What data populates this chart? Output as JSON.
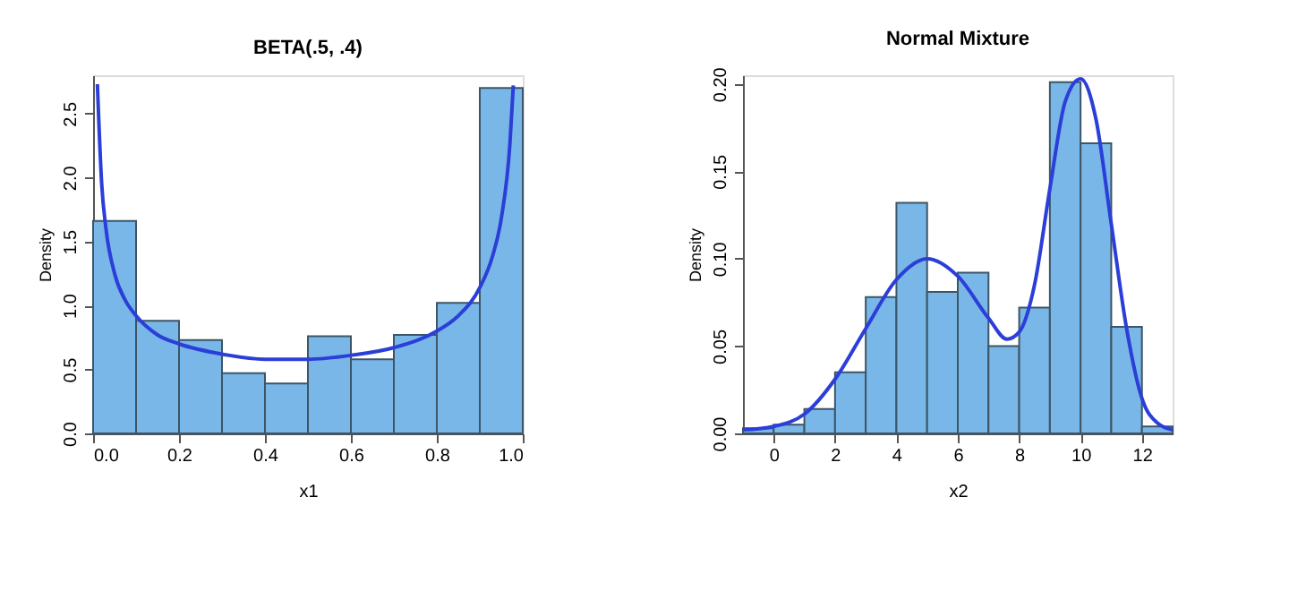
{
  "chart_data": [
    {
      "type": "histogram",
      "title": "BETA(.5, .4)",
      "xlabel": "x1",
      "ylabel": "Density",
      "xlim": [
        0,
        1
      ],
      "xticks": [
        {
          "value": 0,
          "label": "0.0"
        },
        0.2,
        0.4,
        0.6,
        0.8,
        {
          "value": 1,
          "label": "1.0"
        }
      ],
      "ylim": [
        0,
        2.8
      ],
      "yticks": [
        {
          "value": 0,
          "label": "0.0"
        },
        0.5,
        {
          "value": 1,
          "label": "1.0"
        },
        1.5,
        {
          "value": 2,
          "label": "2.0"
        },
        2.5
      ],
      "grid": false,
      "series": [
        {
          "color": "#79b7e8",
          "bins": [
            0,
            0.1,
            0.2,
            0.3,
            0.4,
            0.5,
            0.6,
            0.7,
            0.8,
            0.9,
            1
          ],
          "values": [
            1.66,
            0.88,
            0.73,
            0.47,
            0.39,
            0.76,
            0.58,
            0.77,
            1.02,
            2.7
          ]
        },
        {
          "type": "line",
          "color": "#2b3fd8",
          "x": [
            0.01,
            0.02,
            0.03,
            0.05,
            0.075,
            0.1,
            0.15,
            0.2,
            0.3,
            0.4,
            0.5,
            0.6,
            0.7,
            0.8,
            0.85,
            0.9,
            0.93,
            0.95,
            0.97,
            0.978
          ],
          "values": [
            2.73,
            1.95,
            1.6,
            1.25,
            1.04,
            0.92,
            0.77,
            0.7,
            0.62,
            0.58,
            0.58,
            0.61,
            0.67,
            0.8,
            0.92,
            1.14,
            1.39,
            1.68,
            2.26,
            2.72
          ]
        }
      ]
    },
    {
      "type": "histogram",
      "title": "Normal Mixture",
      "xlabel": "x2",
      "ylabel": "Density",
      "xlim": [
        -1,
        13
      ],
      "xticks": [
        0,
        2,
        4,
        6,
        8,
        10,
        12
      ],
      "ylim": [
        0,
        0.205
      ],
      "yticks": [
        {
          "value": 0,
          "label": "0.00"
        },
        0.05,
        {
          "value": 0.1,
          "label": "0.10"
        },
        0.15,
        {
          "value": 0.2,
          "label": "0.20"
        }
      ],
      "grid": false,
      "series": [
        {
          "color": "#79b7e8",
          "bins": [
            -1,
            0,
            1,
            2,
            3,
            4,
            5,
            6,
            7,
            8,
            9,
            10,
            11,
            12,
            13
          ],
          "values": [
            0.003,
            0.005,
            0.014,
            0.035,
            0.078,
            0.132,
            0.081,
            0.092,
            0.05,
            0.072,
            0.201,
            0.166,
            0.061,
            0.004
          ]
        },
        {
          "type": "line",
          "color": "#2b3fd8",
          "x": [
            -1,
            0,
            1,
            2,
            3,
            4,
            5,
            6,
            7,
            7.6,
            8,
            8.5,
            9,
            9.5,
            10,
            10.5,
            11,
            11.5,
            12,
            12.5,
            13
          ],
          "values": [
            0.002,
            0.004,
            0.011,
            0.031,
            0.06,
            0.088,
            0.1,
            0.09,
            0.066,
            0.054,
            0.058,
            0.085,
            0.14,
            0.19,
            0.203,
            0.18,
            0.12,
            0.06,
            0.02,
            0.006,
            0.002
          ]
        }
      ]
    }
  ]
}
